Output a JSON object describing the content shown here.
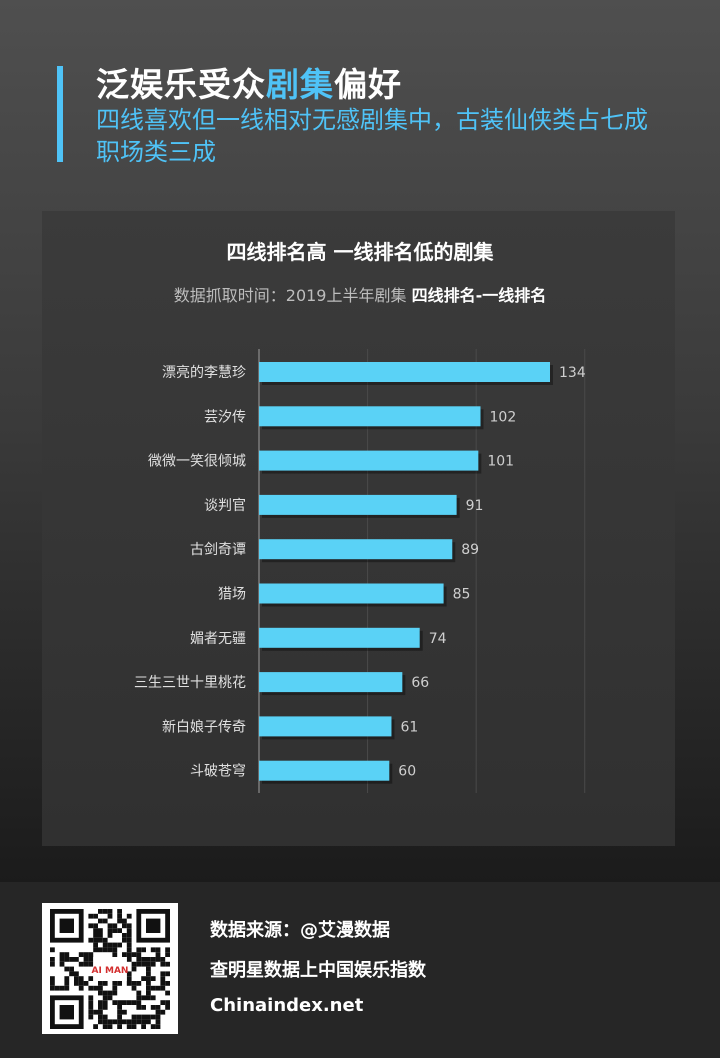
{
  "header": {
    "title_part1": "泛娱乐受众",
    "title_highlight": "剧集",
    "title_part2": "偏好",
    "subtitle": "四线喜欢但一线相对无感剧集中，古装仙侠类占七成职场类三成"
  },
  "chart_data": {
    "type": "bar",
    "orientation": "horizontal",
    "title": "四线排名高 一线排名低的剧集",
    "subtitle_prefix": "数据抓取时间：2019上半年剧集 ",
    "subtitle_emphasis": "四线排名-一线排名",
    "categories": [
      "漂亮的李慧珍",
      "芸汐传",
      "微微一笑很倾城",
      "谈判官",
      "古剑奇谭",
      "猎场",
      "媚者无疆",
      "三生三世十里桃花",
      "新白娘子传奇",
      "斗破苍穹"
    ],
    "values": [
      134,
      102,
      101,
      91,
      89,
      85,
      74,
      66,
      61,
      60
    ],
    "xlim": [
      0,
      150
    ],
    "grid": true,
    "bar_color": "#5ad2f6"
  },
  "footer": {
    "source": "数据来源：@艾漫数据",
    "slogan": "查明星数据上中国娱乐指数",
    "website": "Chinaindex.net",
    "qr_center_text": "AI MAN"
  }
}
